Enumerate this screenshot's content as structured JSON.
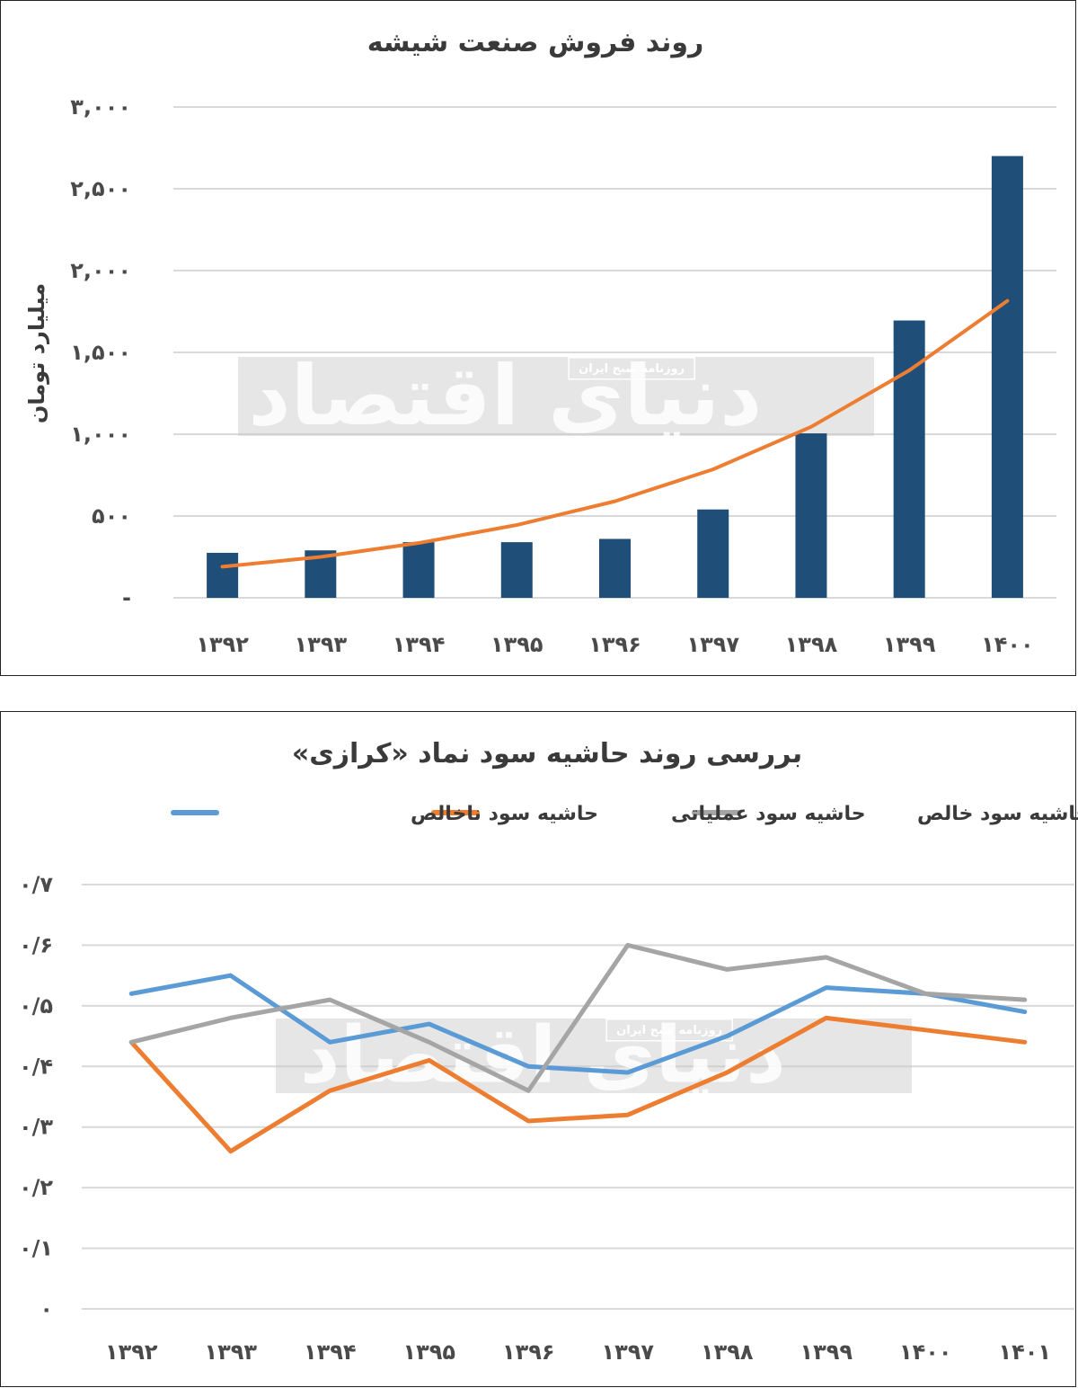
{
  "chart_data": [
    {
      "type": "bar",
      "title": "روند فروش صنعت شیشه",
      "ylabel": "میلیارد تومان",
      "xlabel": "",
      "categories": [
        "۱۳۹۲",
        "۱۳۹۳",
        "۱۳۹۴",
        "۱۳۹۵",
        "۱۳۹۶",
        "۱۳۹۷",
        "۱۳۹۸",
        "۱۳۹۹",
        "۱۴۰۰"
      ],
      "values": [
        275,
        290,
        340,
        340,
        360,
        540,
        1005,
        1695,
        2700
      ],
      "ylim": [
        0,
        3000
      ],
      "yticks": [
        0,
        500,
        1000,
        1500,
        2000,
        2500,
        3000
      ],
      "ytick_labels": [
        "-",
        "۵۰۰",
        "۱,۰۰۰",
        "۱,۵۰۰",
        "۲,۰۰۰",
        "۲,۵۰۰",
        "۳,۰۰۰"
      ],
      "trendline": {
        "type": "exponential",
        "color": "#ED7D31",
        "values": [
          190,
          250,
          335,
          445,
          590,
          785,
          1045,
          1390,
          1815
        ]
      },
      "bar_color": "#1F4E79",
      "grid": true,
      "legend": "none"
    },
    {
      "type": "line",
      "title": "بررسی روند حاشیه سود نماد «کرازی»",
      "xlabel": "",
      "ylabel": "",
      "categories": [
        "۱۳۹۲",
        "۱۳۹۳",
        "۱۳۹۴",
        "۱۳۹۵",
        "۱۳۹۶",
        "۱۳۹۷",
        "۱۳۹۸",
        "۱۳۹۹",
        "۱۴۰۰",
        "۱۴۰۱"
      ],
      "series": [
        {
          "name": "حاشیه سود ناخالص",
          "color": "#5B9BD5",
          "values": [
            0.52,
            0.55,
            0.44,
            0.47,
            0.4,
            0.39,
            0.45,
            0.53,
            0.52,
            0.49
          ]
        },
        {
          "name": "حاشیه سود عملیاتی",
          "color": "#ED7D31",
          "values": [
            0.44,
            0.26,
            0.36,
            0.41,
            0.31,
            0.32,
            0.39,
            0.48,
            0.46,
            0.44
          ]
        },
        {
          "name": "حاشیه سود خالص",
          "color": "#A5A5A5",
          "values": [
            0.44,
            0.48,
            0.51,
            0.44,
            0.36,
            0.6,
            0.56,
            0.58,
            0.52,
            0.51
          ]
        }
      ],
      "ylim": [
        0,
        0.7
      ],
      "yticks": [
        0,
        0.1,
        0.2,
        0.3,
        0.4,
        0.5,
        0.6,
        0.7
      ],
      "ytick_labels": [
        "۰",
        "۰/۱",
        "۰/۲",
        "۰/۳",
        "۰/۴",
        "۰/۵",
        "۰/۶",
        "۰/۷"
      ],
      "grid": true,
      "legend": "top-center"
    }
  ],
  "watermark": {
    "logo_text": "دنیای اقتصاد",
    "subtitle": "روزنامه صبح ایران"
  }
}
